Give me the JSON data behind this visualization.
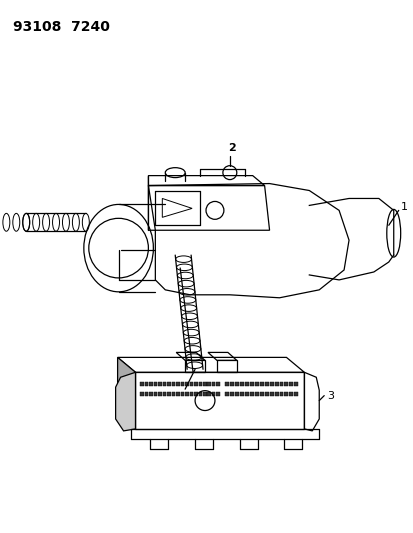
{
  "title": "93108  7240",
  "background_color": "#ffffff",
  "line_color": "#000000",
  "label_1": "1",
  "label_2": "2",
  "label_3": "3",
  "title_fontsize": 10
}
